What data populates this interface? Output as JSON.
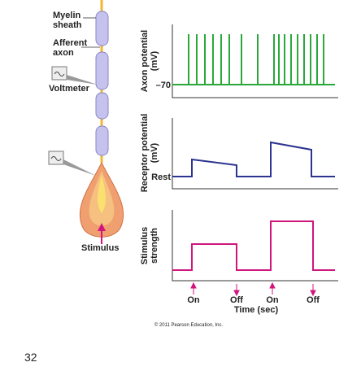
{
  "labels": {
    "myelin": [
      "Myelin",
      "sheath"
    ],
    "afferent": [
      "Afferent",
      "axon"
    ],
    "voltmeter": "Voltmeter",
    "stimulus": "Stimulus"
  },
  "panels": [
    {
      "ylabel": [
        "Axon potential",
        "(mV)"
      ],
      "level_label": "–70"
    },
    {
      "ylabel": [
        "Receptor potential",
        "(mV)"
      ],
      "level_label": "Rest"
    },
    {
      "ylabel": [
        "Stimulus",
        "strength"
      ]
    }
  ],
  "events": [
    "On",
    "Off",
    "On",
    "Off"
  ],
  "xlabel": "Time (sec)",
  "copyright": "© 2011 Pearson Education, Inc.",
  "page_number": "32"
}
